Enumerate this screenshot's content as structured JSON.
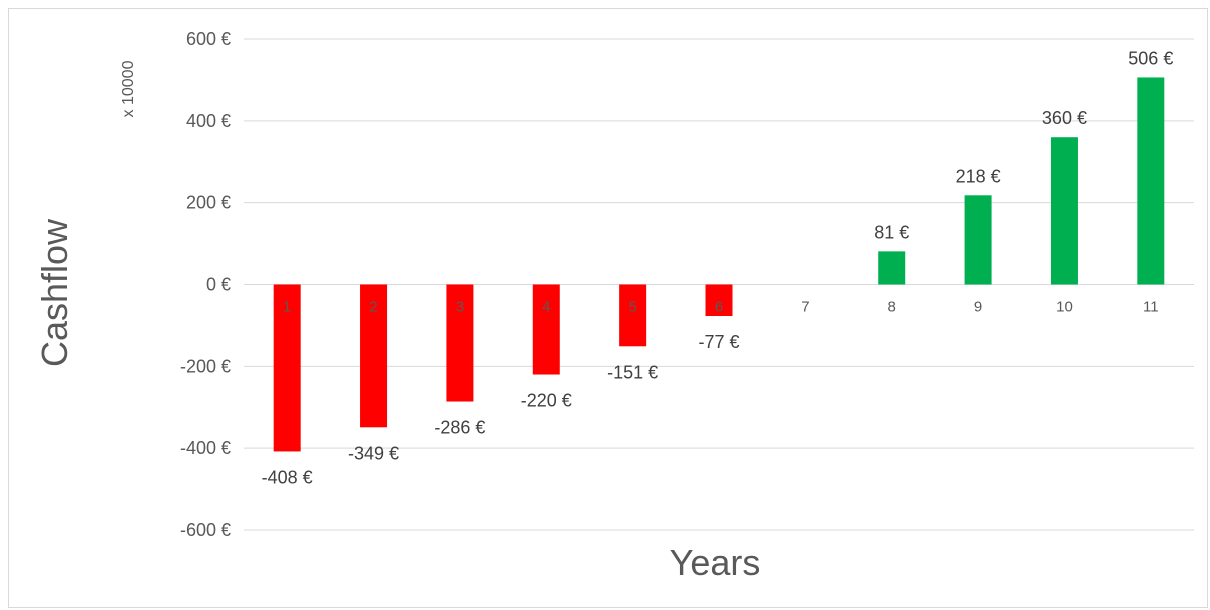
{
  "chart_data": {
    "type": "bar",
    "categories": [
      "1",
      "2",
      "3",
      "4",
      "5",
      "6",
      "7",
      "8",
      "9",
      "10",
      "11"
    ],
    "values": [
      -408,
      -349,
      -286,
      -220,
      -151,
      -77,
      0,
      81,
      218,
      360,
      506
    ],
    "data_labels": [
      "-408 €",
      "-349 €",
      "-286 €",
      "-220 €",
      "-151 €",
      "-77 €",
      "",
      "81 €",
      "218 €",
      "360 €",
      "506 €"
    ],
    "ylim": [
      -600,
      600
    ],
    "yticks": [
      600,
      400,
      200,
      0,
      -200,
      -400,
      -600
    ],
    "ytick_labels": [
      "600 €",
      "400 €",
      "200 €",
      "0 €",
      "-200 €",
      "-400 €",
      "-600 €"
    ],
    "xlabel": "Years",
    "ylabel": "Cashflow",
    "y_unit": "x 10000",
    "grid": true,
    "colors": {
      "negative": "#ff0000",
      "positive": "#00b050",
      "grid": "#d9d9d9",
      "text": "#595959"
    }
  }
}
